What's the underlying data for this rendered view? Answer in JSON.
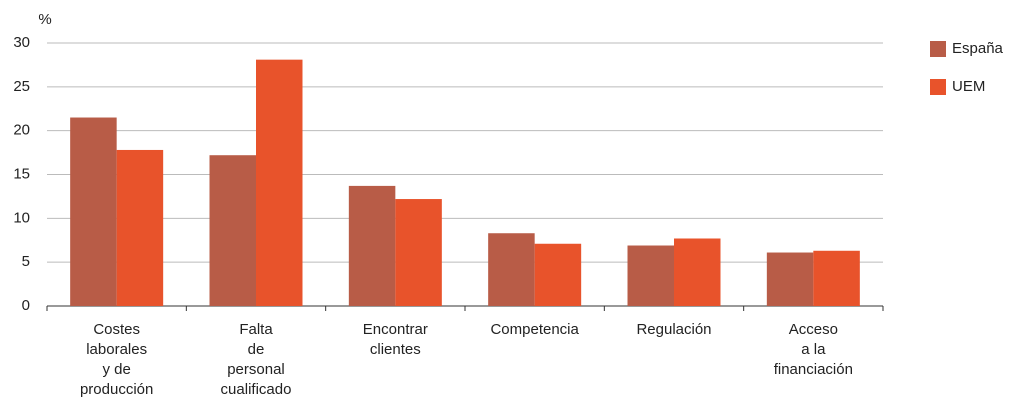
{
  "chart_data": {
    "type": "bar",
    "y_unit": "%",
    "categories": [
      "Costes\nlaborales\ny de\nproducción",
      "Falta\nde\npersonal\ncualificado",
      "Encontrar\nclientes",
      "Competencia",
      "Regulación",
      "Acceso\na la\nfinanciación"
    ],
    "series": [
      {
        "name": "España",
        "color": "#b85c47",
        "values": [
          21.5,
          17.2,
          13.7,
          8.3,
          6.9,
          6.1
        ]
      },
      {
        "name": "UEM",
        "color": "#e8532b",
        "values": [
          17.8,
          28.1,
          12.2,
          7.1,
          7.7,
          6.3
        ]
      }
    ],
    "ylim": [
      0,
      30
    ],
    "yticks": [
      0,
      5,
      10,
      15,
      20,
      25,
      30
    ],
    "grid": true,
    "legend": "right"
  }
}
